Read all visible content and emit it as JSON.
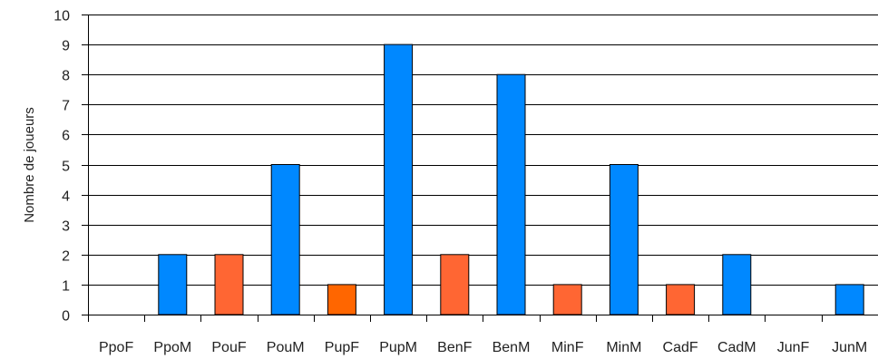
{
  "chart_data": {
    "type": "bar",
    "ylabel": "Nombre de joueurs",
    "ylim": [
      0,
      10
    ],
    "yticks": [
      0,
      1,
      2,
      3,
      4,
      5,
      6,
      7,
      8,
      9,
      10
    ],
    "grid": true,
    "categories": [
      "PpoF",
      "PpoM",
      "PouF",
      "PouM",
      "PupF",
      "PupM",
      "BenF",
      "BenM",
      "MinF",
      "MinM",
      "CadF",
      "CadM",
      "JunF",
      "JunM"
    ],
    "values": [
      0,
      2,
      2,
      5,
      1,
      9,
      2,
      8,
      1,
      5,
      1,
      2,
      0,
      1
    ],
    "bar_colors": [
      "#ff6633",
      "#0088ff",
      "#ff6633",
      "#0088ff",
      "#ff6600",
      "#0088ff",
      "#ff6633",
      "#0088ff",
      "#ff6633",
      "#0088ff",
      "#ff6633",
      "#0088ff",
      "#ff6633",
      "#0088ff"
    ]
  }
}
